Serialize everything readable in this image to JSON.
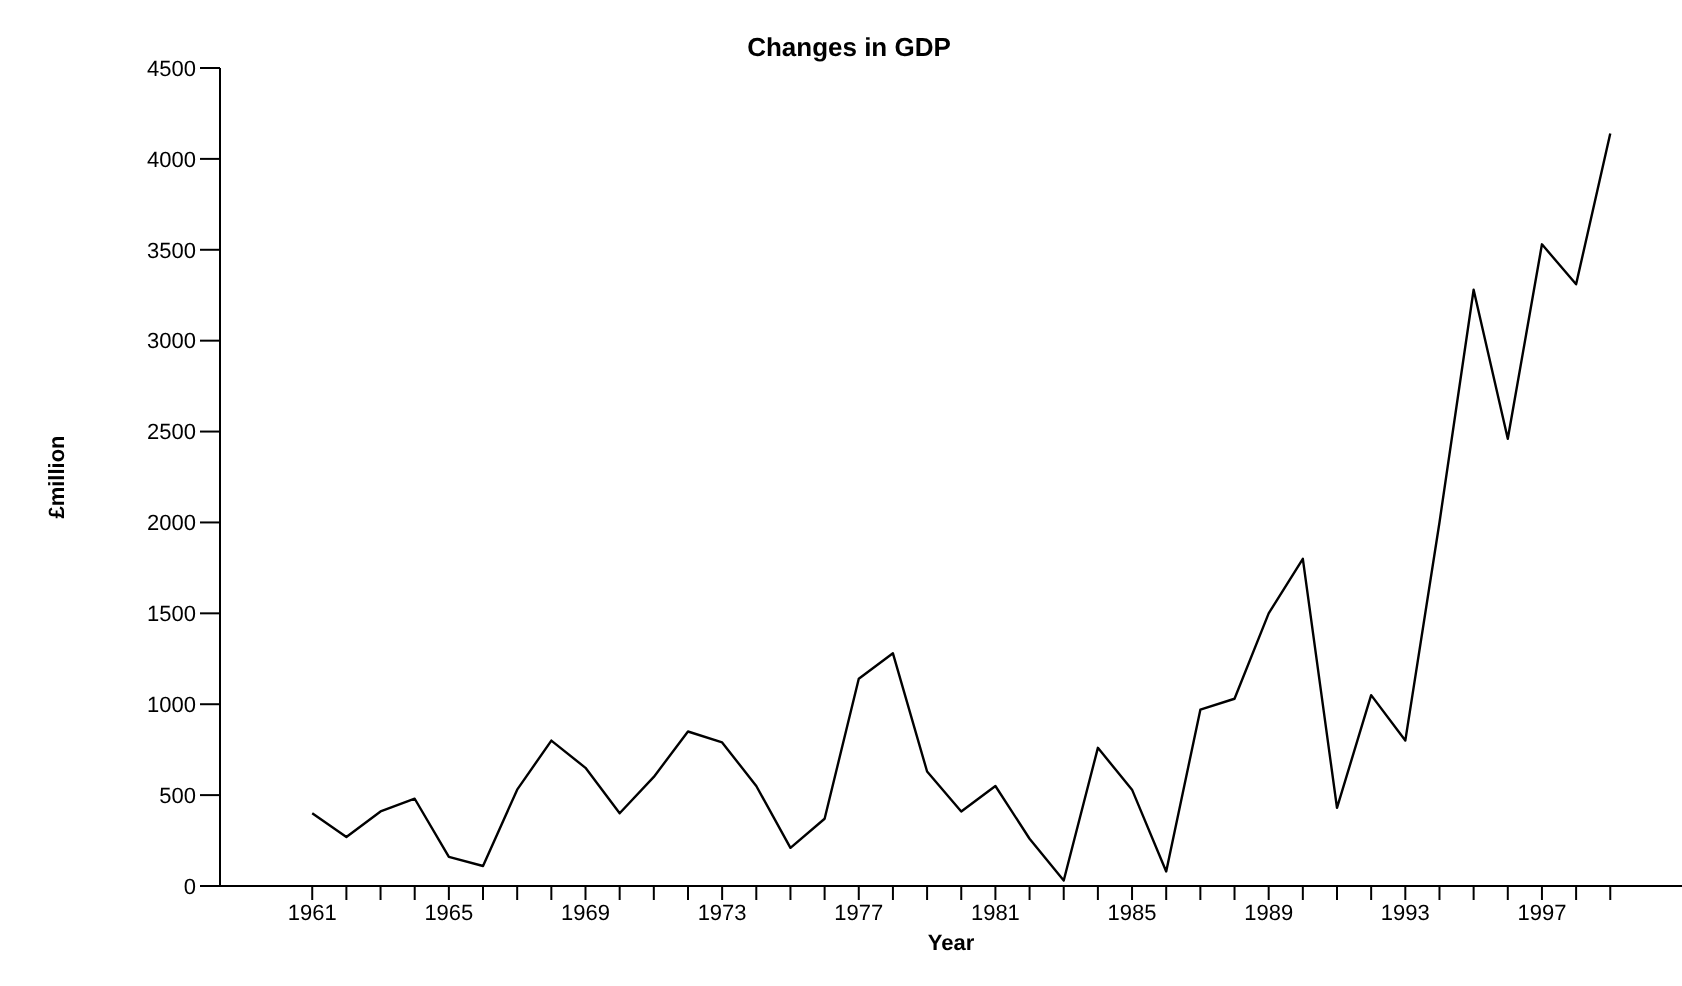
{
  "chart_data": {
    "type": "line",
    "title": "Changes in GDP",
    "xlabel": "Year",
    "ylabel": "£million",
    "x": [
      1961,
      1962,
      1963,
      1964,
      1965,
      1966,
      1967,
      1968,
      1969,
      1970,
      1971,
      1972,
      1973,
      1974,
      1975,
      1976,
      1977,
      1978,
      1979,
      1980,
      1981,
      1982,
      1983,
      1984,
      1985,
      1986,
      1987,
      1988,
      1989,
      1990,
      1991,
      1992,
      1993,
      1994,
      1995,
      1996,
      1997,
      1998,
      1999
    ],
    "series": [
      {
        "color": "#000000",
        "values": [
          400,
          270,
          410,
          480,
          160,
          110,
          530,
          800,
          650,
          400,
          600,
          850,
          790,
          550,
          210,
          370,
          1140,
          1280,
          630,
          410,
          550,
          260,
          30,
          760,
          530,
          80,
          970,
          1030,
          1500,
          1800,
          430,
          1050,
          800,
          2000,
          3280,
          2460,
          3530,
          3310,
          4140
        ]
      }
    ],
    "xlim": [
      1958.3,
      2001.1
    ],
    "xticks": [
      1961,
      {
        "value": 1962,
        "label": null
      },
      {
        "value": 1963,
        "label": null
      },
      {
        "value": 1964,
        "label": null
      },
      1965,
      {
        "value": 1966,
        "label": null
      },
      {
        "value": 1967,
        "label": null
      },
      {
        "value": 1968,
        "label": null
      },
      1969,
      {
        "value": 1970,
        "label": null
      },
      {
        "value": 1971,
        "label": null
      },
      {
        "value": 1972,
        "label": null
      },
      1973,
      {
        "value": 1974,
        "label": null
      },
      {
        "value": 1975,
        "label": null
      },
      {
        "value": 1976,
        "label": null
      },
      1977,
      {
        "value": 1978,
        "label": null
      },
      {
        "value": 1979,
        "label": null
      },
      {
        "value": 1980,
        "label": null
      },
      1981,
      {
        "value": 1982,
        "label": null
      },
      {
        "value": 1983,
        "label": null
      },
      {
        "value": 1984,
        "label": null
      },
      1985,
      {
        "value": 1986,
        "label": null
      },
      {
        "value": 1987,
        "label": null
      },
      {
        "value": 1988,
        "label": null
      },
      1989,
      {
        "value": 1990,
        "label": null
      },
      {
        "value": 1991,
        "label": null
      },
      {
        "value": 1992,
        "label": null
      },
      1993,
      {
        "value": 1994,
        "label": null
      },
      {
        "value": 1995,
        "label": null
      },
      {
        "value": 1996,
        "label": null
      },
      1997,
      {
        "value": 1998,
        "label": null
      },
      {
        "value": 1999,
        "label": null
      }
    ],
    "ylim": [
      0,
      4500
    ],
    "yticks": [
      0,
      500,
      1000,
      1500,
      2000,
      2500,
      3000,
      3500,
      4000,
      4500
    ],
    "grid": false,
    "legend": false,
    "marker": "none",
    "line_style": "solid"
  }
}
